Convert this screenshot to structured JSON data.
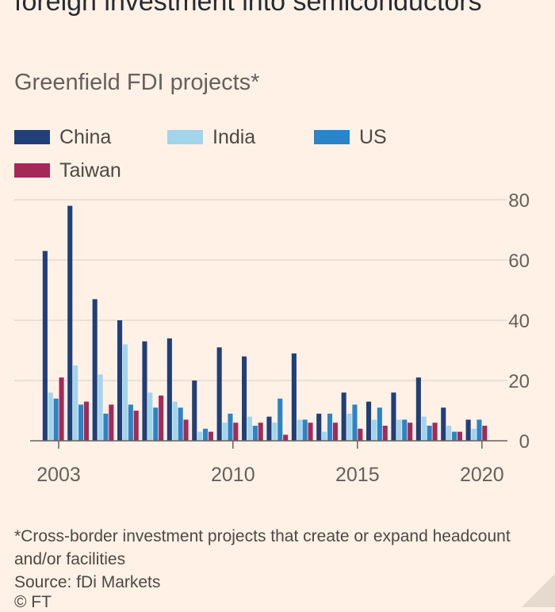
{
  "header": {
    "title": "foreign investment into semiconductors",
    "subtitle": "Greenfield FDI projects*"
  },
  "legend": [
    {
      "label": "China",
      "color": "#1f3f78"
    },
    {
      "label": "India",
      "color": "#a2d4ec"
    },
    {
      "label": "US",
      "color": "#2a84c7"
    },
    {
      "label": "Taiwan",
      "color": "#a32a58"
    }
  ],
  "footnote": {
    "note": "*Cross-border investment projects that create or expand headcount and/or facilities",
    "source": "Source: fDi Markets",
    "copyright": "© FT"
  },
  "chart_data": {
    "type": "bar",
    "categories": [
      "2003",
      "2004",
      "2005",
      "2006",
      "2007",
      "2008",
      "2009",
      "2010",
      "2011",
      "2012",
      "2013",
      "2014",
      "2015",
      "2016",
      "2017",
      "2018",
      "2019",
      "2020"
    ],
    "series": [
      {
        "name": "China",
        "color": "#1f3f78",
        "values": [
          63,
          78,
          47,
          40,
          33,
          34,
          20,
          31,
          28,
          8,
          29,
          9,
          16,
          13,
          16,
          21,
          11,
          7
        ]
      },
      {
        "name": "India",
        "color": "#a2d4ec",
        "values": [
          16,
          25,
          22,
          32,
          16,
          13,
          3,
          6,
          8,
          6,
          7,
          3,
          9,
          7,
          7,
          8,
          5,
          4
        ]
      },
      {
        "name": "US",
        "color": "#2a84c7",
        "values": [
          14,
          12,
          9,
          12,
          11,
          11,
          4,
          9,
          5,
          14,
          7,
          9,
          12,
          11,
          7,
          5,
          3,
          7
        ]
      },
      {
        "name": "Taiwan",
        "color": "#a32a58",
        "values": [
          21,
          13,
          12,
          10,
          15,
          7,
          3,
          6,
          6,
          2,
          6,
          6,
          4,
          5,
          6,
          6,
          3,
          5
        ]
      }
    ],
    "x_tick_labels": [
      "2003",
      "2010",
      "2015",
      "2020"
    ],
    "y_ticks": [
      0,
      20,
      40,
      60,
      80
    ],
    "ylim": [
      0,
      80
    ],
    "ylabel": "",
    "xlabel": "",
    "grid": true,
    "y_axis_position": "right",
    "legend_position": "top"
  }
}
